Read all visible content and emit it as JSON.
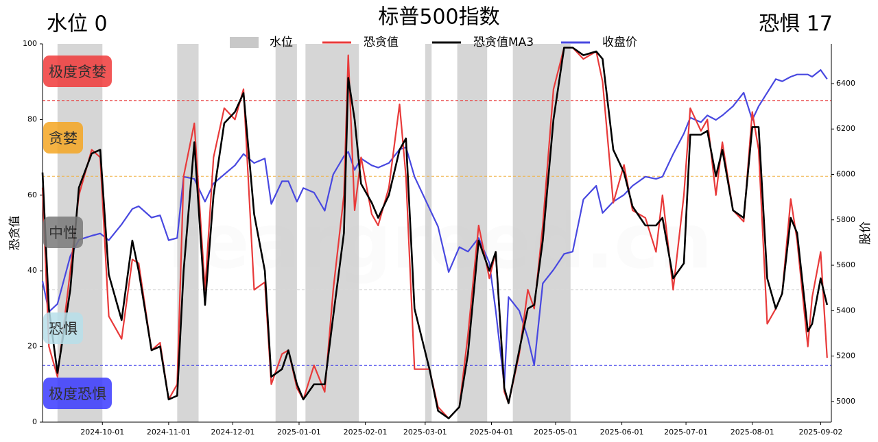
{
  "chart_data": {
    "type": "line",
    "title": "标普500指数",
    "top_left": "水位 0",
    "top_right": "恐惧 17",
    "watermark": "feargreed.cn",
    "ylabel": "恐贪值",
    "y2label": "股价",
    "xlim": [
      "2024-09-03",
      "2025-09-07"
    ],
    "xticks": [
      "2024-10-01",
      "2024-11-01",
      "2024-12-01",
      "2025-01-01",
      "2025-02-01",
      "2025-03-01",
      "2025-04-01",
      "2025-05-01",
      "2025-06-01",
      "2025-07-01",
      "2025-08-01",
      "2025-09-02"
    ],
    "ylim": [
      0,
      100
    ],
    "yticks": [
      0,
      20,
      40,
      60,
      80,
      100
    ],
    "y2lim": [
      4909,
      6575
    ],
    "y2ticks": [
      5000,
      5200,
      5400,
      5600,
      5800,
      6000,
      6200,
      6400
    ],
    "band_label": "水位",
    "band_color": "#c8c8c8",
    "bands": [
      {
        "start": "2024-09-10",
        "end": "2024-10-01"
      },
      {
        "start": "2024-11-05",
        "end": "2024-11-15"
      },
      {
        "start": "2024-12-21",
        "end": "2024-12-31"
      },
      {
        "start": "2025-01-04",
        "end": "2025-01-29"
      },
      {
        "start": "2025-03-01",
        "end": "2025-03-04"
      },
      {
        "start": "2025-03-16",
        "end": "2025-03-30"
      },
      {
        "start": "2025-04-11",
        "end": "2025-05-08"
      }
    ],
    "hlines": [
      {
        "y": 85,
        "color": "#e83a3a"
      },
      {
        "y": 65,
        "color": "#f0b040"
      },
      {
        "y": 35,
        "color": "#d8d8d8"
      },
      {
        "y": 15,
        "color": "#3a3ae8"
      }
    ],
    "zones": [
      {
        "label": "极度贪婪",
        "color": "#f03a3a"
      },
      {
        "label": "贪婪",
        "color": "#f5a623"
      },
      {
        "label": "中性",
        "color": "#7a7a7a"
      },
      {
        "label": "恐惧",
        "color": "#b8e0ea"
      },
      {
        "label": "极度恐惧",
        "color": "#3a3aff"
      }
    ],
    "x": [
      "2024-09-03",
      "2024-09-06",
      "2024-09-10",
      "2024-09-16",
      "2024-09-20",
      "2024-09-26",
      "2024-09-30",
      "2024-10-04",
      "2024-10-10",
      "2024-10-15",
      "2024-10-18",
      "2024-10-24",
      "2024-10-28",
      "2024-11-01",
      "2024-11-05",
      "2024-11-08",
      "2024-11-13",
      "2024-11-18",
      "2024-11-22",
      "2024-11-27",
      "2024-12-02",
      "2024-12-06",
      "2024-12-11",
      "2024-12-16",
      "2024-12-19",
      "2024-12-24",
      "2024-12-27",
      "2024-12-31",
      "2025-01-03",
      "2025-01-08",
      "2025-01-13",
      "2025-01-17",
      "2025-01-22",
      "2025-01-24",
      "2025-01-27",
      "2025-01-30",
      "2025-02-04",
      "2025-02-07",
      "2025-02-12",
      "2025-02-17",
      "2025-02-20",
      "2025-02-24",
      "2025-03-03",
      "2025-03-07",
      "2025-03-12",
      "2025-03-17",
      "2025-03-21",
      "2025-03-26",
      "2025-03-31",
      "2025-04-03",
      "2025-04-07",
      "2025-04-09",
      "2025-04-14",
      "2025-04-18",
      "2025-04-21",
      "2025-04-25",
      "2025-04-30",
      "2025-05-05",
      "2025-05-09",
      "2025-05-14",
      "2025-05-20",
      "2025-05-23",
      "2025-05-28",
      "2025-06-02",
      "2025-06-06",
      "2025-06-12",
      "2025-06-17",
      "2025-06-20",
      "2025-06-25",
      "2025-06-30",
      "2025-07-03",
      "2025-07-08",
      "2025-07-11",
      "2025-07-15",
      "2025-07-18",
      "2025-07-23",
      "2025-07-28",
      "2025-08-01",
      "2025-08-04",
      "2025-08-08",
      "2025-08-12",
      "2025-08-15",
      "2025-08-19",
      "2025-08-22",
      "2025-08-27",
      "2025-08-29",
      "2025-09-02",
      "2025-09-05"
    ],
    "series": [
      {
        "name": "恐贪值",
        "color": "#e83a3a",
        "values": [
          62,
          20,
          12,
          40,
          60,
          72,
          70,
          28,
          22,
          43,
          42,
          19,
          21,
          6,
          10,
          65,
          79,
          35,
          70,
          83,
          80,
          88,
          35,
          37,
          10,
          18,
          19,
          9,
          6,
          15,
          8,
          35,
          60,
          97,
          56,
          70,
          55,
          52,
          62,
          84,
          65,
          14,
          14,
          4,
          1,
          4,
          23,
          52,
          38,
          45,
          8,
          5,
          18,
          35,
          30,
          52,
          88,
          99,
          99,
          96,
          98,
          90,
          58,
          68,
          56,
          54,
          45,
          60,
          35,
          60,
          83,
          77,
          80,
          60,
          74,
          56,
          53,
          82,
          72,
          26,
          30,
          34,
          59,
          48,
          20,
          33,
          45,
          17
        ]
      },
      {
        "name": "恐贪值MA3",
        "color": "#000000",
        "values": [
          66,
          30,
          13,
          35,
          62,
          71,
          72,
          39,
          27,
          48,
          40,
          19,
          20,
          6,
          7,
          40,
          74,
          31,
          60,
          79,
          82,
          87,
          55,
          40,
          12,
          14,
          19,
          10,
          6,
          10,
          10,
          28,
          50,
          91,
          80,
          63,
          58,
          54,
          60,
          72,
          75,
          30,
          14,
          3,
          1,
          4,
          18,
          48,
          40,
          45,
          9,
          5,
          19,
          30,
          31,
          48,
          80,
          99,
          99,
          97,
          98,
          96,
          72,
          66,
          57,
          52,
          52,
          54,
          38,
          42,
          76,
          76,
          77,
          65,
          72,
          56,
          54,
          78,
          78,
          38,
          30,
          34,
          54,
          50,
          24,
          26,
          38,
          31
        ]
      },
      {
        "name": "收盘价",
        "color": "#4848e0",
        "axis": "y2",
        "values": [
          5530,
          5395,
          5430,
          5640,
          5712,
          5730,
          5740,
          5710,
          5780,
          5848,
          5860,
          5810,
          5820,
          5710,
          5720,
          5990,
          5980,
          5880,
          5960,
          6000,
          6040,
          6090,
          6050,
          6070,
          5870,
          5970,
          5970,
          5880,
          5940,
          5920,
          5840,
          6000,
          6080,
          6100,
          6020,
          6070,
          6040,
          6030,
          6050,
          6110,
          6120,
          5990,
          5850,
          5770,
          5570,
          5680,
          5660,
          5720,
          5610,
          5400,
          5070,
          5460,
          5400,
          5280,
          5160,
          5520,
          5580,
          5650,
          5660,
          5890,
          5950,
          5830,
          5880,
          5910,
          5950,
          5990,
          5980,
          5990,
          6090,
          6180,
          6250,
          6230,
          6260,
          6240,
          6260,
          6300,
          6360,
          6240,
          6300,
          6360,
          6420,
          6410,
          6430,
          6440,
          6440,
          6430,
          6460,
          6420
        ]
      }
    ]
  }
}
